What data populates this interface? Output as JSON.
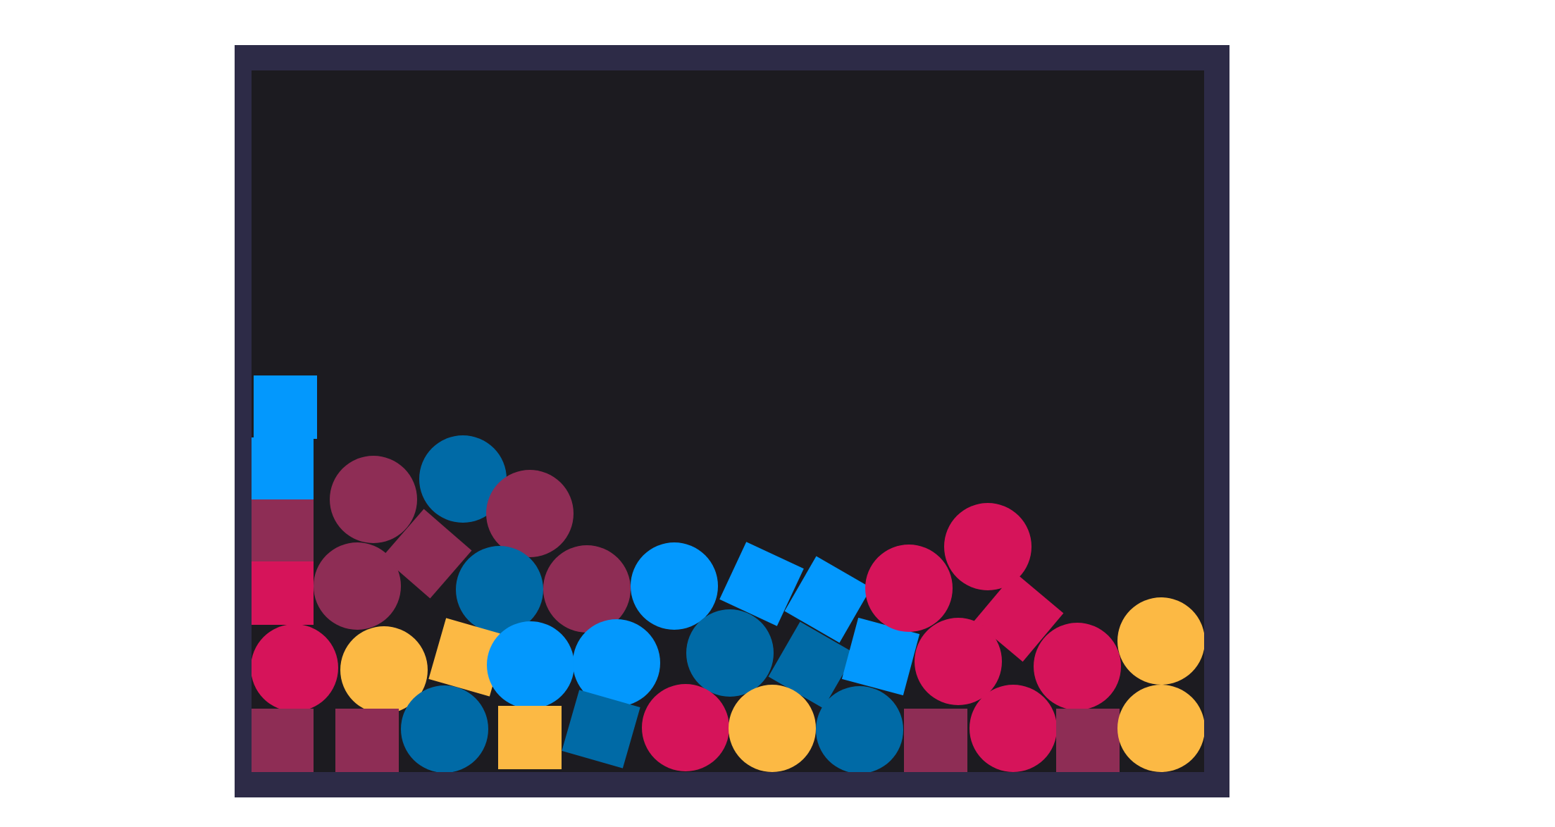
{
  "colors": {
    "frame": "#2d2b47",
    "playfield": "#1c1b20",
    "maroon": "#8e2d55",
    "crimson": "#d6145a",
    "amber": "#fcb944",
    "sky_blue": "#0398fd",
    "ocean_blue": "#006aa6"
  },
  "game": {
    "piece_count": 37,
    "piece_types": [
      "circle",
      "square"
    ],
    "piece_colors": [
      "maroon",
      "crimson",
      "amber",
      "sky_blue",
      "ocean_blue"
    ]
  }
}
